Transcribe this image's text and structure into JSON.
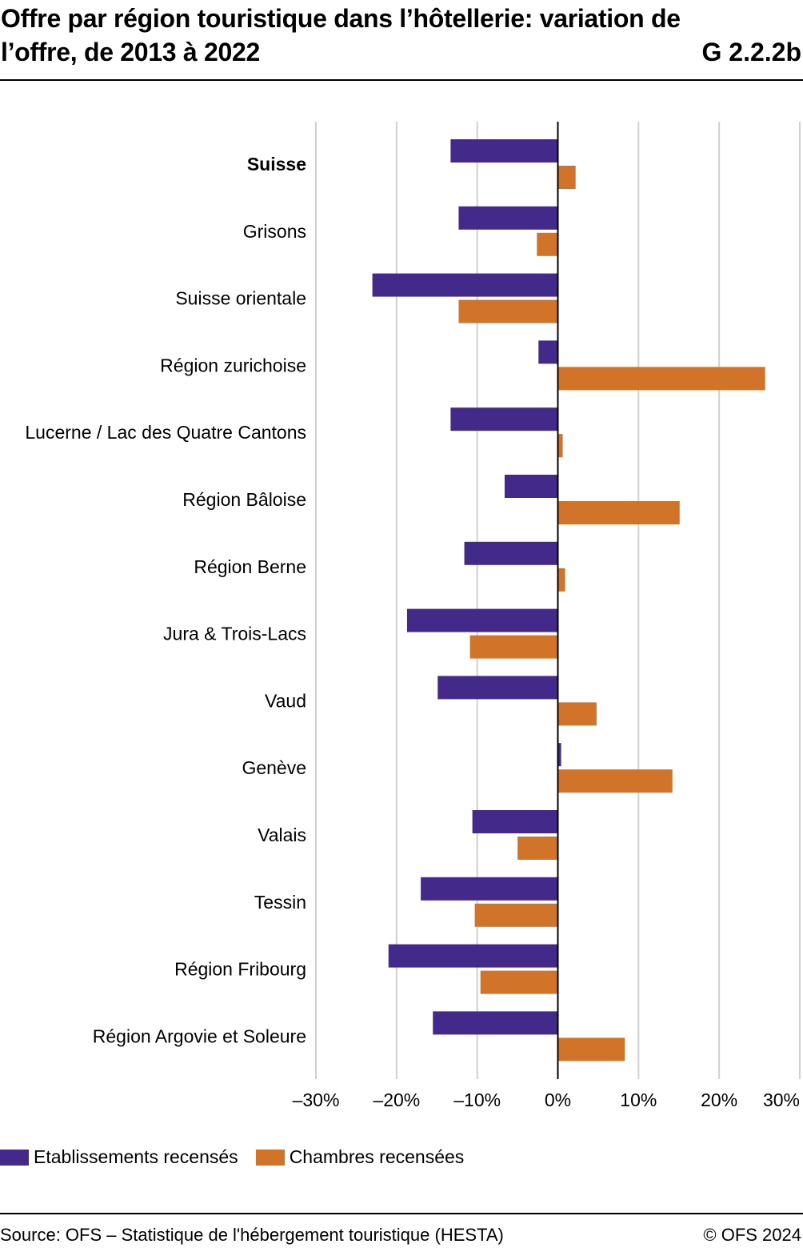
{
  "header": {
    "title": "Offre par région touristique dans l’hôtellerie: variation de l’offre, de 2013 à 2022",
    "chart_id": "G 2.2.2b"
  },
  "footer": {
    "source": "Source: OFS – Statistique de l'hébergement touristique (HESTA)",
    "copyright": "© OFS 2024"
  },
  "colors": {
    "series1": "#42298a",
    "series2": "#d2732a",
    "grid": "#d0d0d0",
    "axis": "#000000"
  },
  "chart_data": {
    "type": "bar",
    "orientation": "horizontal",
    "categories": [
      "Suisse",
      "Grisons",
      "Suisse orientale",
      "Région zurichoise",
      "Lucerne / Lac des Quatre Cantons",
      "Région Bâloise",
      "Région Berne",
      "Jura & Trois-Lacs",
      "Vaud",
      "Genève",
      "Valais",
      "Tessin",
      "Région Fribourg",
      "Région Argovie et Soleure"
    ],
    "bold_categories": [
      "Suisse"
    ],
    "series": [
      {
        "name": "Etablissements recensés",
        "values": [
          -13.3,
          -12.3,
          -23.0,
          -2.4,
          -13.3,
          -6.6,
          -11.6,
          -18.7,
          -14.9,
          0.4,
          -10.6,
          -17.0,
          -21.0,
          -15.5
        ]
      },
      {
        "name": "Chambres recensées",
        "values": [
          2.2,
          -2.6,
          -12.3,
          25.7,
          0.6,
          15.1,
          0.9,
          -10.9,
          4.8,
          14.2,
          -5.0,
          -10.3,
          -9.6,
          8.3
        ]
      }
    ],
    "xlim": [
      -30,
      30
    ],
    "ticks": [
      -30,
      -20,
      -10,
      0,
      10,
      20,
      30
    ],
    "tick_labels": [
      "–30%",
      "–20%",
      "–10%",
      "0%",
      "10%",
      "20%",
      "30%"
    ],
    "grid": true,
    "legend_position": "bottom-left",
    "xlabel": "",
    "ylabel": ""
  }
}
